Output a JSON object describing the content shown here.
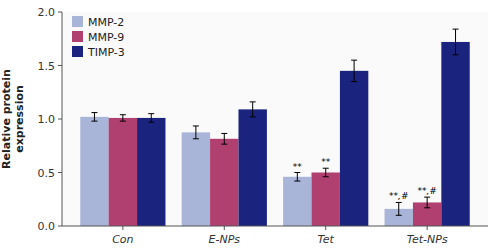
{
  "chart_data": {
    "type": "bar",
    "ylabel": "Relative protein\nexpression",
    "categories": [
      "Con",
      "E-NPs",
      "Tet",
      "Tet-NPs"
    ],
    "series": [
      {
        "name": "MMP-2",
        "color": "#a8b4d8",
        "values": [
          1.02,
          0.875,
          0.46,
          0.16
        ],
        "errors": [
          0.04,
          0.06,
          0.04,
          0.06
        ]
      },
      {
        "name": "MMP-9",
        "color": "#b04070",
        "values": [
          1.01,
          0.815,
          0.5,
          0.22
        ],
        "errors": [
          0.03,
          0.05,
          0.04,
          0.05
        ]
      },
      {
        "name": "TIMP-3",
        "color": "#1a237e",
        "values": [
          1.01,
          1.09,
          1.45,
          1.72
        ],
        "errors": [
          0.04,
          0.07,
          0.1,
          0.12
        ]
      }
    ],
    "annotations": [
      {
        "text": "**",
        "category": "Tet",
        "series": "MMP-2"
      },
      {
        "text": "**",
        "category": "Tet",
        "series": "MMP-9"
      },
      {
        "text": "**,#",
        "category": "Tet-NPs",
        "series": "MMP-2"
      },
      {
        "text": "**,#",
        "category": "Tet-NPs",
        "series": "MMP-9"
      }
    ],
    "ylim": [
      0,
      2.0
    ],
    "yticks": [
      {
        "value": 0,
        "label": "0.0"
      },
      0.5,
      {
        "value": 1,
        "label": "1.0"
      },
      1.5,
      {
        "value": 2,
        "label": "2.0"
      }
    ],
    "grid": false,
    "legend": "upper left"
  }
}
